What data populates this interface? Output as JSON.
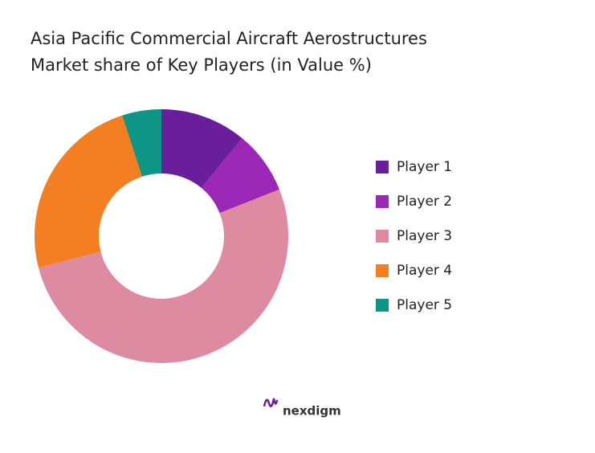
{
  "chart_data": {
    "type": "donut",
    "title": [
      "Asia Pacific Commercial Aircraft Aerostructures",
      "Market share of Key Players (in Value %)"
    ],
    "categories": [
      "Player 1",
      "Player 2",
      "Player 3",
      "Player 4",
      "Player 5"
    ],
    "values": [
      11,
      8,
      52,
      24,
      5
    ],
    "colors": [
      "#6a1e9c",
      "#9a27b5",
      "#de8aa1",
      "#f37f22",
      "#0f9586"
    ],
    "legend": "right",
    "brand": "nexdigm"
  }
}
